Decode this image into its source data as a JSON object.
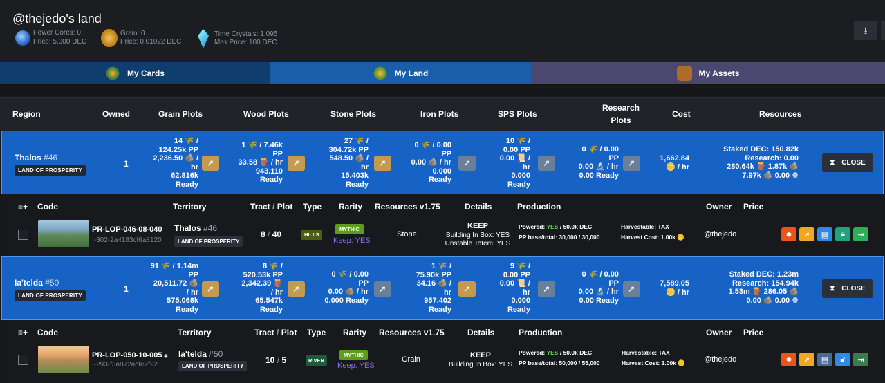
{
  "page": {
    "title": "@thejedo's land"
  },
  "stats": {
    "power_cores": "Power Cores: 0",
    "power_price": "Price: 5,000 DEC",
    "grain": "Grain: 0",
    "grain_price": "Price: 0.01022 DEC",
    "crystals": "Time Crystals: 1,095",
    "crystals_max": "Max Price: 100 DEC"
  },
  "tabs": [
    {
      "label": "My Cards"
    },
    {
      "label": "My Land"
    },
    {
      "label": "My Assets"
    }
  ],
  "columns": {
    "region": "Region",
    "owned": "Owned",
    "grain": "Grain Plots",
    "wood": "Wood Plots",
    "stone": "Stone Plots",
    "iron": "Iron Plots",
    "sps": "SPS Plots",
    "research": [
      "Research",
      "Plots"
    ],
    "cost": "Cost",
    "resources": "Resources"
  },
  "sub_columns": {
    "code": "Code",
    "territory": "Territory",
    "tract": "Tract",
    "slash": " / ",
    "plot": "Plot",
    "type": "Type",
    "rarity": "Rarity",
    "resources": "Resources v1.75",
    "details": "Details",
    "production": "Production",
    "owner": "Owner",
    "price": "Price",
    "expand": "≡+"
  },
  "regions": [
    {
      "name": "Thalos",
      "num": "#46",
      "badge": "LAND OF PROSPERITY",
      "owned": "1",
      "grain": [
        "14 🌾 /",
        "124.25k PP",
        "2,236.50 🪨 /",
        "hr",
        "62.816k",
        "Ready"
      ],
      "wood": [
        "1 🌾 / 7.46k",
        "PP",
        "33.58 🪵 / hr",
        "943.110",
        "Ready"
      ],
      "stone": [
        "27 🌾 /",
        "304.72k PP",
        "548.50 🪨 /",
        "hr",
        "15.403k",
        "Ready"
      ],
      "iron": [
        "0 🌾 / 0.00",
        "PP",
        "0.00 🪨 / hr",
        "0.000",
        "Ready"
      ],
      "sps": [
        "10 🌾 /",
        "0.00 PP",
        "0.00 📜 /",
        "hr",
        "0.000",
        "Ready"
      ],
      "research": [
        "0 🌾 / 0.00",
        "PP",
        "0.00 🔬 / hr",
        "0.00 Ready"
      ],
      "cost": [
        "1,662.84",
        "🪙 / hr"
      ],
      "resources": [
        "Staked DEC: 150.82k",
        "Research: 0.00",
        "280.64k 🪵  1.87k 🪨",
        "7.97k 🪨  0.00 ⚙"
      ],
      "close": "CLOSE",
      "plot": {
        "code": "PR-LOP-046-08-040",
        "id": "I-302-2a4183cf6a8120",
        "locked": false,
        "territory": "Thalos",
        "terr_num": "#46",
        "badge": "LAND OF PROSPERITY",
        "tract": "8",
        "plot": "40",
        "type": "HILLS",
        "type_color": "#4b5e12",
        "rarity": "MYTHIC",
        "keep": "Keep: YES",
        "resource": "Stone",
        "details": [
          "KEEP",
          "Building In Box: YES",
          "Unstable Totem: YES"
        ],
        "powered_label": "Powered: ",
        "powered_val": "YES",
        "powered_rest": " / 50.0k DEC",
        "pp": "PP base/total: 30,000 / 30,000",
        "harvestable": "Harvestable: TAX",
        "harvest_cost": "Harvest Cost: 1.00k 🪙",
        "owner": "@thejedo"
      }
    },
    {
      "name": "Ia'telda",
      "num": "#50",
      "badge": "LAND OF PROSPERITY",
      "owned": "1",
      "grain": [
        "91 🌾 / 1.14m",
        "PP",
        "20,511.72 🪨",
        "/ hr",
        "575.068k",
        "Ready"
      ],
      "wood": [
        "8 🌾 /",
        "520.53k PP",
        "2,342.39 🪵",
        "/ hr",
        "65.547k",
        "Ready"
      ],
      "stone": [
        "0 🌾 / 0.00",
        "PP",
        "0.00 🪨 / hr",
        "0.000 Ready"
      ],
      "iron": [
        "1 🌾 /",
        "75.90k PP",
        "34.16 🪨 /",
        "hr",
        "957.402",
        "Ready"
      ],
      "sps": [
        "9 🌾 /",
        "0.00 PP",
        "0.00 📜 /",
        "hr",
        "0.000",
        "Ready"
      ],
      "research": [
        "0 🌾 / 0.00",
        "PP",
        "0.00 🔬 / hr",
        "0.00 Ready"
      ],
      "cost": [
        "7,589.05",
        "🪙 / hr"
      ],
      "resources": [
        "Staked DEC: 1.23m",
        "Research: 154.94k",
        "1.53m 🪵  286.05 🪨",
        "0.00 🪨  0.00 ⚙"
      ],
      "close": "CLOSE",
      "plot": {
        "code": "PR-LOP-050-10-005",
        "id": "I-293-f3a872acfe2f92",
        "locked": true,
        "territory": "Ia'telda",
        "terr_num": "#50",
        "badge": "LAND OF PROSPERITY",
        "tract": "10",
        "plot": "5",
        "type": "RIVER",
        "type_color": "#1f5a3a",
        "rarity": "MYTHIC",
        "keep": "Keep: YES",
        "resource": "Grain",
        "details": [
          "KEEP",
          "Building In Box: YES",
          ""
        ],
        "powered_label": "Powered: ",
        "powered_val": "YES",
        "powered_rest": " / 50.0k DEC",
        "pp": "PP base/total: 50,000 / 55,000",
        "harvestable": "Harvestable: TAX",
        "harvest_cost": "Harvest Cost: 1.00k 🪙",
        "owner": "@thejedo"
      }
    }
  ]
}
